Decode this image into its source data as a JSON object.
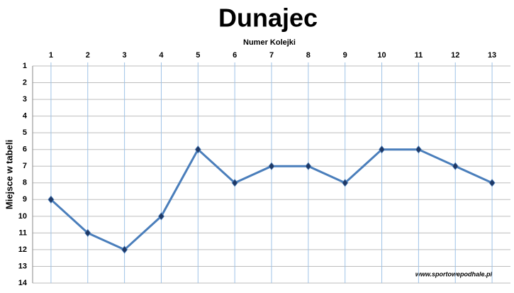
{
  "chart_data": {
    "type": "line",
    "title": "Dunajec",
    "x_label": "Numer Kolejki",
    "y_label": "Miejsce w tabeli",
    "watermark": "www.sportowepodhale.pl",
    "categories": [
      1,
      2,
      3,
      4,
      5,
      6,
      7,
      8,
      9,
      10,
      11,
      12,
      13
    ],
    "series": [
      {
        "name": "Dunajec",
        "color": "#4a7ebb",
        "values": [
          9,
          11,
          12,
          10,
          6,
          8,
          7,
          7,
          8,
          6,
          6,
          7,
          8
        ]
      }
    ],
    "ylim": [
      1,
      14
    ],
    "yticks": [
      1,
      2,
      3,
      4,
      5,
      6,
      7,
      8,
      9,
      10,
      11,
      12,
      13,
      14
    ],
    "y_inverted": true,
    "grid": true
  }
}
